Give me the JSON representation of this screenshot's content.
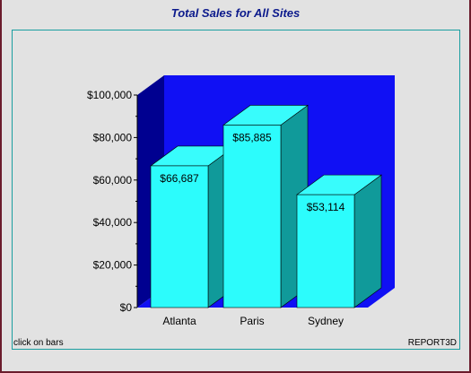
{
  "report": {
    "title": "Total Sales for All Sites",
    "footer_left": "click on bars",
    "footer_right": "REPORT3D"
  },
  "colors": {
    "bar_front": "#2cfcfc",
    "bar_top": "#38fcfc",
    "bar_side": "#109a9a",
    "back_wall": "#1010f4",
    "side_wall": "#000090",
    "floor": "#1010f4",
    "title": "#0c1a8c",
    "panel_border": "#1a9ea0"
  },
  "chart_data": {
    "type": "bar",
    "title": "Total Sales for All Sites",
    "categories": [
      "Atlanta",
      "Paris",
      "Sydney"
    ],
    "values": [
      66687,
      85885,
      53114
    ],
    "value_labels": [
      "$66,687",
      "$85,885",
      "$53,114"
    ],
    "ylim": [
      0,
      100000
    ],
    "yticks": [
      0,
      20000,
      40000,
      60000,
      80000,
      100000
    ],
    "ytick_labels": [
      "$0",
      "$20,000",
      "$40,000",
      "$60,000",
      "$80,000",
      "$100,000"
    ],
    "grid": false,
    "three_d": true
  }
}
